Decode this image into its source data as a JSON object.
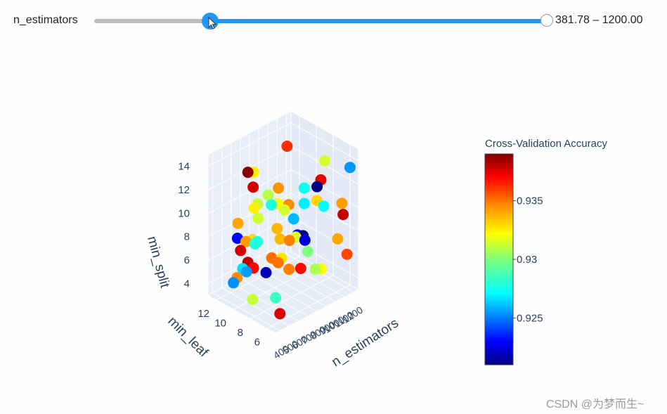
{
  "slider": {
    "label": "n_estimators",
    "range_text": "381.78 – 1200.00",
    "min": 100,
    "max": 1200,
    "low": 381.78,
    "high": 1200.0,
    "accent": "#2196f3"
  },
  "watermark": "CSDN @为梦而生~",
  "chart_data": {
    "type": "scatter3d",
    "title": "",
    "axes": {
      "x": {
        "title": "min_leaf",
        "ticks": [
          "6",
          "8",
          "10",
          "12"
        ]
      },
      "y": {
        "title": "n_estimators",
        "ticks": [
          "400",
          "500",
          "600",
          "700",
          "800",
          "900",
          "1000",
          "1100",
          "1200"
        ]
      },
      "z": {
        "title": "min_split",
        "ticks": [
          "4",
          "6",
          "8",
          "10",
          "12",
          "14"
        ]
      }
    },
    "colorbar": {
      "title": "Cross-Validation Accuracy",
      "colorscale": "Jet",
      "range": [
        0.921,
        0.939
      ],
      "ticks": [
        "0.925",
        "0.93",
        "0.935"
      ]
    },
    "points_accuracy": [
      0.9345,
      0.9316,
      0.9378,
      0.9283,
      0.9233,
      0.9308,
      0.9347,
      0.9259,
      0.928,
      0.9227,
      0.9367,
      0.934,
      0.922,
      0.9329,
      0.9355,
      0.9283,
      0.931,
      0.9272,
      0.9312,
      0.9275,
      0.9338,
      0.9341,
      0.9327,
      0.9322,
      0.9372,
      0.936,
      0.932,
      0.9366,
      0.9265,
      0.9388,
      0.9226,
      0.9375,
      0.933,
      0.9325,
      0.9343,
      0.9278,
      0.9212,
      0.9258,
      0.9348,
      0.9345,
      0.926,
      0.9378,
      0.9315,
      0.9374,
      0.9375,
      0.93,
      0.9338,
      0.9325,
      0.9335,
      0.9312,
      0.9288,
      0.9283,
      0.9335,
      0.9314,
      0.934,
      0.9208,
      0.9315,
      0.9343
    ]
  }
}
